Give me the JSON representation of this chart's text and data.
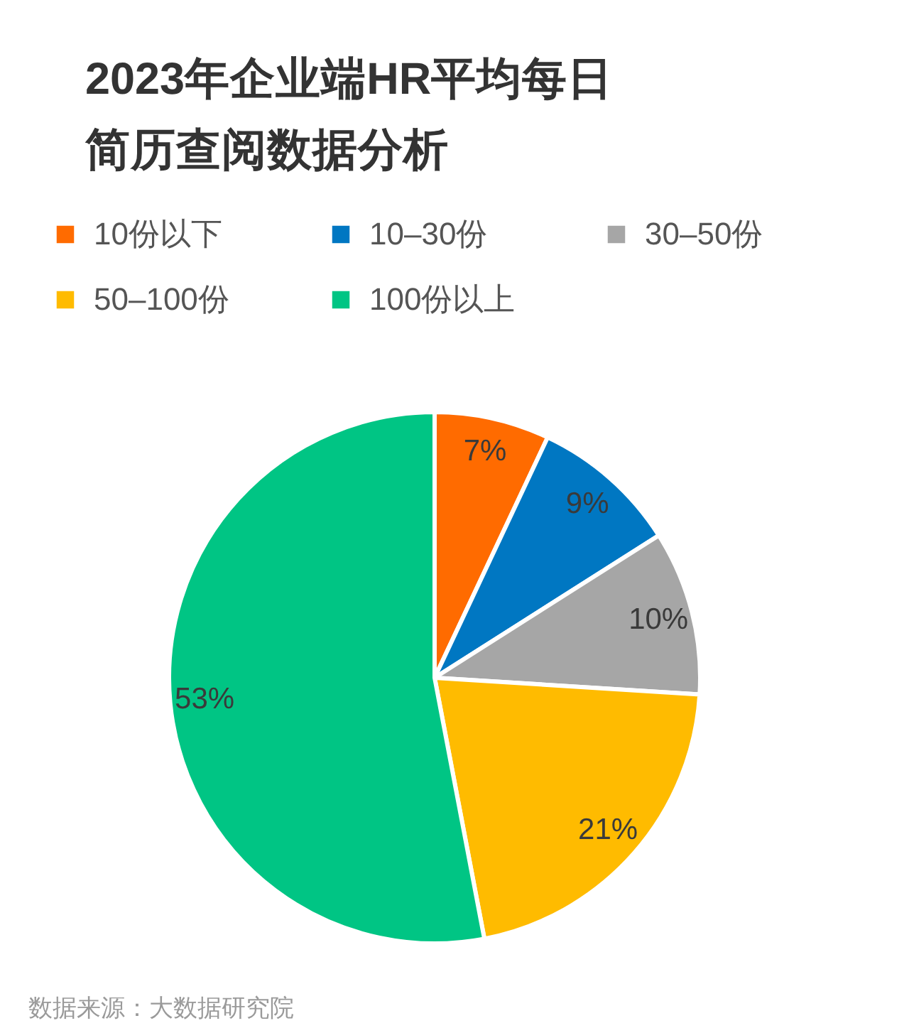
{
  "chart_data": {
    "type": "pie",
    "title": "2023年企业端HR平均每日简历查阅数据分析",
    "categories": [
      "10份以下",
      "10–30份",
      "30–50份",
      "50–100份",
      "100份以上"
    ],
    "values": [
      7,
      9,
      10,
      21,
      53
    ],
    "colors": [
      "#ff6b00",
      "#0077c2",
      "#a6a6a6",
      "#ffbb00",
      "#00c584"
    ],
    "value_labels": [
      "7%",
      "9%",
      "10%",
      "21%",
      "53%"
    ],
    "legend": "top",
    "annotations": [
      "数据来源：大数据研究院"
    ]
  }
}
